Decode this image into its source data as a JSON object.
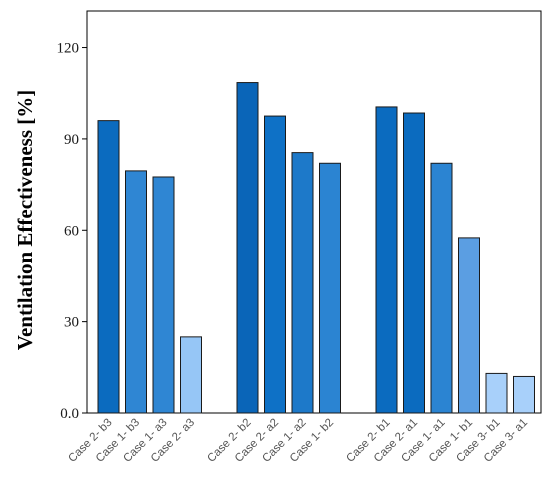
{
  "chart_data": {
    "type": "bar",
    "title": "",
    "xlabel": "",
    "ylabel": "Ventilation Effectiveness [%]",
    "ylim": [
      0,
      132
    ],
    "yticks": [
      "0.0",
      "30",
      "60",
      "90",
      "120"
    ],
    "grid": false,
    "groups": [
      {
        "bars": [
          {
            "label": "Case 2- b3",
            "value": 96,
            "color": "#0b6bbf"
          },
          {
            "label": "Case 1- b3",
            "value": 79.5,
            "color": "#2f86d3"
          },
          {
            "label": "Case 1- a3",
            "value": 77.5,
            "color": "#2f86d3"
          },
          {
            "label": "Case 2- a3",
            "value": 25,
            "color": "#96c6f6"
          }
        ]
      },
      {
        "bars": [
          {
            "label": "Case 2- b2",
            "value": 108.5,
            "color": "#0a65b8"
          },
          {
            "label": "Case 2- a2",
            "value": 97.5,
            "color": "#0e71c6"
          },
          {
            "label": "Case 1- a2",
            "value": 85.5,
            "color": "#1d79c9"
          },
          {
            "label": "Case 1- b2",
            "value": 82,
            "color": "#2b84d2"
          }
        ]
      },
      {
        "bars": [
          {
            "label": "Case 2- b1",
            "value": 100.5,
            "color": "#0b6bbf"
          },
          {
            "label": "Case 2- a1",
            "value": 98.5,
            "color": "#0b6bbf"
          },
          {
            "label": "Case 1- a1",
            "value": 82,
            "color": "#2b84d2"
          },
          {
            "label": "Case 1- b1",
            "value": 57.5,
            "color": "#5b9ee2"
          },
          {
            "label": "Case 3- b1",
            "value": 13,
            "color": "#a8d0fa"
          },
          {
            "label": "Case 3- a1",
            "value": 12,
            "color": "#a8d0fa"
          }
        ]
      }
    ]
  }
}
